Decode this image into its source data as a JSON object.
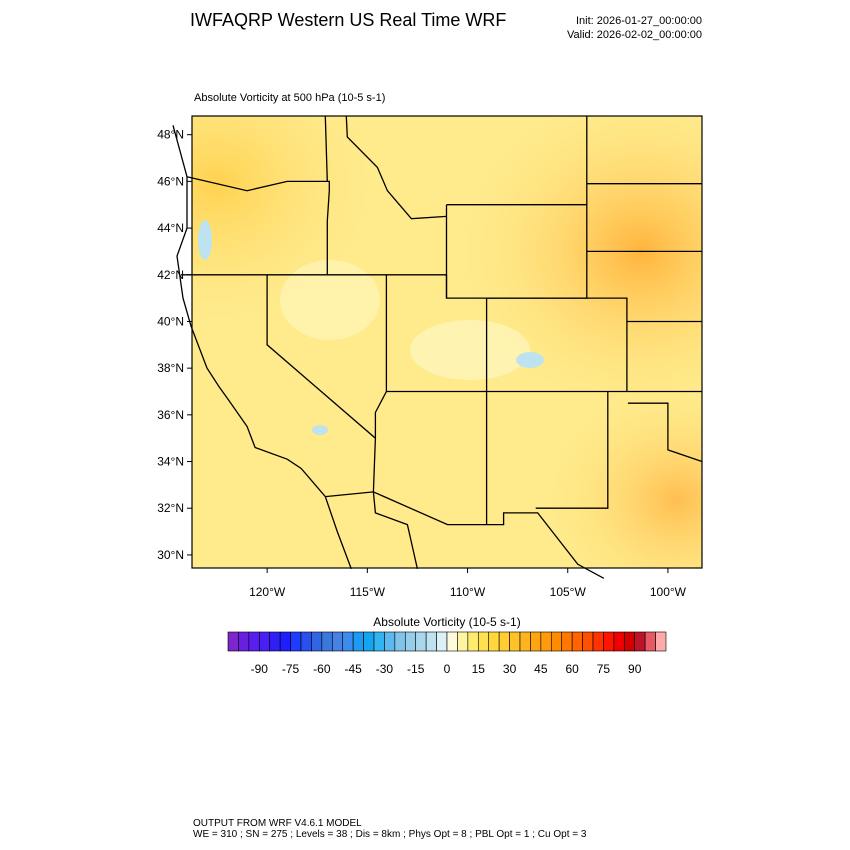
{
  "header": {
    "title": "IWFAQRP Western US Real Time WRF",
    "init": "Init: 2026-01-27_00:00:00",
    "valid": "Valid: 2026-02-02_00:00:00"
  },
  "map": {
    "subtitle": "Absolute Vorticity at 500 hPa   (10-5 s-1)",
    "lat_range": [
      29.44,
      48.8
    ],
    "lon_range": [
      -123.75,
      -98.3
    ],
    "lat_ticks": [
      {
        "value": 48,
        "label": "48°N"
      },
      {
        "value": 46,
        "label": "46°N"
      },
      {
        "value": 44,
        "label": "44°N"
      },
      {
        "value": 42,
        "label": "42°N"
      },
      {
        "value": 40,
        "label": "40°N"
      },
      {
        "value": 38,
        "label": "38°N"
      },
      {
        "value": 36,
        "label": "36°N"
      },
      {
        "value": 34,
        "label": "34°N"
      },
      {
        "value": 32,
        "label": "32°N"
      },
      {
        "value": 30,
        "label": "30°N"
      }
    ],
    "lon_ticks": [
      {
        "value": -120,
        "label": "120°W"
      },
      {
        "value": -115,
        "label": "115°W"
      },
      {
        "value": -110,
        "label": "110°W"
      },
      {
        "value": -105,
        "label": "105°W"
      },
      {
        "value": -100,
        "label": "100°W"
      }
    ]
  },
  "colorbar": {
    "title": "Absolute Vorticity  (10-5 s-1)",
    "range": [
      -105,
      105
    ],
    "ticks": [
      -90,
      -75,
      -60,
      -45,
      -30,
      -15,
      0,
      15,
      30,
      45,
      60,
      75,
      90
    ],
    "colors": [
      "#7d26cd",
      "#6a1fe0",
      "#5a1ff0",
      "#4a1ff5",
      "#2f1ff5",
      "#1e1eff",
      "#1e3cff",
      "#2850ef",
      "#3264e6",
      "#3c78dc",
      "#4682e6",
      "#3c8cf0",
      "#1e9bf0",
      "#14a5f0",
      "#32b4f0",
      "#5ab9ee",
      "#82c3ec",
      "#96cdeb",
      "#aad7ed",
      "#bee3f0",
      "#dcf0f5",
      "#fffadc",
      "#fff5a0",
      "#ffeb6e",
      "#ffe150",
      "#ffd73c",
      "#ffcd32",
      "#ffc328",
      "#ffb41e",
      "#ffa514",
      "#ff9b0a",
      "#ff8c00",
      "#ff7800",
      "#ff6400",
      "#ff5000",
      "#ff3200",
      "#ff1400",
      "#f00000",
      "#d20000",
      "#be1428",
      "#e65a64",
      "#ffaaaa"
    ]
  },
  "footer": {
    "line1": "OUTPUT FROM WRF V4.6.1 MODEL",
    "line2": "WE = 310 ; SN = 275 ; Levels = 38 ; Dis = 8km ; Phys Opt = 8 ; PBL Opt = 1 ; Cu Opt = 3"
  }
}
